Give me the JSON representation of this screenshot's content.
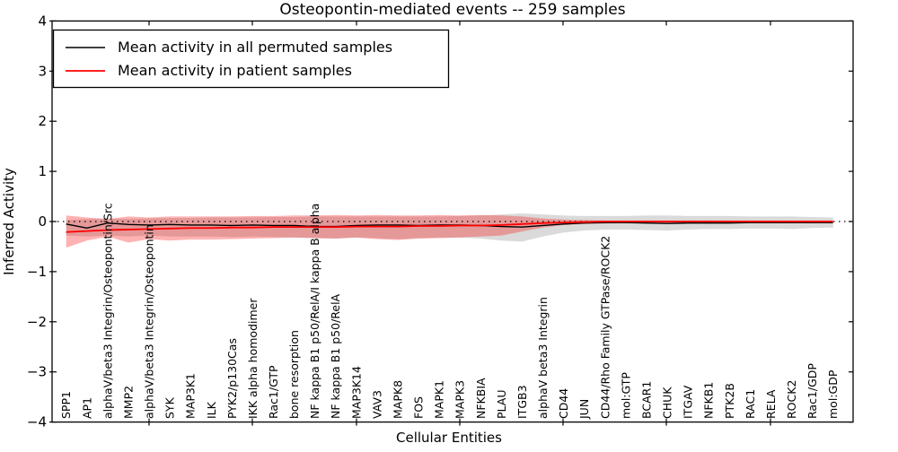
{
  "chart_data": {
    "type": "line",
    "title": "Osteopontin-mediated events -- 259 samples",
    "xlabel": "Cellular Entities",
    "ylabel": "Inferred Activity",
    "ylim": [
      -4,
      4
    ],
    "yticks": [
      "4",
      "3",
      "2",
      "1",
      "0",
      "−1",
      "−2",
      "−3",
      "−4"
    ],
    "ytick_values": [
      4,
      3,
      2,
      1,
      0,
      -1,
      -2,
      -3,
      -4
    ],
    "grid": false,
    "zero_reference_line": true,
    "legend_position": "upper left",
    "categories": [
      "SPP1",
      "AP1",
      "alphaV/beta3 Integrin/Osteopontin/Src",
      "MMP2",
      "alphaV/beta3 Integrin/Osteopontin",
      "SYK",
      "MAP3K1",
      "ILK",
      "PYK2/p130Cas",
      "IKK alpha homodimer",
      "Rac1/GTP",
      "bone resorption",
      "NF kappa B1 p50/RelA/I kappa B alpha",
      "NF kappa B1 p50/RelA",
      "MAP3K14",
      "VAV3",
      "MAPK8",
      "FOS",
      "MAPK1",
      "MAPK3",
      "NFKBIA",
      "PLAU",
      "ITGB3",
      "alphaV beta3 Integrin",
      "CD44",
      "JUN",
      "CD44/Rho Family GTPase/ROCK2",
      "mol:GTP",
      "BCAR1",
      "CHUK",
      "ITGAV",
      "NFKB1",
      "PTK2B",
      "RAC1",
      "RELA",
      "ROCK2",
      "Rac1/GDP",
      "mol:GDP"
    ],
    "series": [
      {
        "name": "Mean activity in all permuted samples",
        "color": "#000000",
        "values": [
          -0.05,
          -0.13,
          -0.03,
          -0.06,
          -0.07,
          -0.06,
          -0.07,
          -0.07,
          -0.08,
          -0.07,
          -0.08,
          -0.08,
          -0.1,
          -0.1,
          -0.08,
          -0.07,
          -0.07,
          -0.08,
          -0.07,
          -0.07,
          -0.08,
          -0.1,
          -0.11,
          -0.08,
          -0.05,
          -0.03,
          -0.02,
          -0.02,
          -0.03,
          -0.04,
          -0.03,
          -0.03,
          -0.03,
          -0.02,
          -0.02,
          -0.02,
          -0.02,
          -0.02
        ]
      },
      {
        "name": "Mean activity in patient samples",
        "color": "#ff0000",
        "values": [
          -0.21,
          -0.19,
          -0.17,
          -0.16,
          -0.15,
          -0.14,
          -0.13,
          -0.13,
          -0.12,
          -0.12,
          -0.11,
          -0.11,
          -0.11,
          -0.11,
          -0.1,
          -0.1,
          -0.1,
          -0.09,
          -0.09,
          -0.08,
          -0.08,
          -0.07,
          -0.05,
          -0.03,
          -0.02,
          -0.01,
          0.0,
          0.0,
          0.0,
          0.0,
          0.0,
          0.0,
          0.0,
          0.0,
          0.0,
          0.0,
          0.0,
          0.0
        ]
      }
    ],
    "bands": [
      {
        "name": "permuted samples std band",
        "color": "#a8a8a8",
        "opacity": 0.42,
        "upper": [
          0.03,
          0.05,
          0.06,
          0.05,
          0.06,
          0.07,
          0.07,
          0.08,
          0.08,
          0.08,
          0.09,
          0.09,
          0.1,
          0.1,
          0.1,
          0.1,
          0.1,
          0.1,
          0.1,
          0.11,
          0.12,
          0.14,
          0.16,
          0.14,
          0.12,
          0.11,
          0.11,
          0.11,
          0.12,
          0.12,
          0.11,
          0.11,
          0.11,
          0.1,
          0.1,
          0.1,
          0.09,
          0.08
        ],
        "lower": [
          -0.28,
          -0.3,
          -0.28,
          -0.3,
          -0.28,
          -0.3,
          -0.3,
          -0.3,
          -0.31,
          -0.3,
          -0.31,
          -0.32,
          -0.33,
          -0.34,
          -0.32,
          -0.33,
          -0.35,
          -0.33,
          -0.32,
          -0.32,
          -0.34,
          -0.38,
          -0.4,
          -0.3,
          -0.22,
          -0.18,
          -0.16,
          -0.16,
          -0.17,
          -0.18,
          -0.16,
          -0.15,
          -0.15,
          -0.14,
          -0.14,
          -0.15,
          -0.13,
          -0.12
        ]
      },
      {
        "name": "patient samples std band",
        "color": "#ff0000",
        "opacity": 0.3,
        "upper": [
          0.12,
          0.08,
          0.05,
          0.1,
          0.08,
          0.1,
          0.1,
          0.1,
          0.1,
          0.11,
          0.11,
          0.12,
          0.12,
          0.13,
          0.12,
          0.13,
          0.12,
          0.12,
          0.13,
          0.12,
          0.13,
          0.12,
          0.1,
          0.06,
          0.04,
          0.03,
          0.02,
          0.02,
          0.02,
          0.02,
          0.02,
          0.02,
          0.02,
          0.02,
          0.02,
          0.02,
          0.02,
          0.02
        ],
        "lower": [
          -0.52,
          -0.38,
          -0.3,
          -0.42,
          -0.35,
          -0.38,
          -0.36,
          -0.36,
          -0.35,
          -0.34,
          -0.33,
          -0.32,
          -0.33,
          -0.34,
          -0.32,
          -0.35,
          -0.37,
          -0.34,
          -0.33,
          -0.32,
          -0.3,
          -0.28,
          -0.2,
          -0.12,
          -0.07,
          -0.05,
          -0.04,
          -0.03,
          -0.03,
          -0.03,
          -0.03,
          -0.03,
          -0.03,
          -0.03,
          -0.03,
          -0.03,
          -0.03,
          -0.03
        ]
      }
    ]
  }
}
